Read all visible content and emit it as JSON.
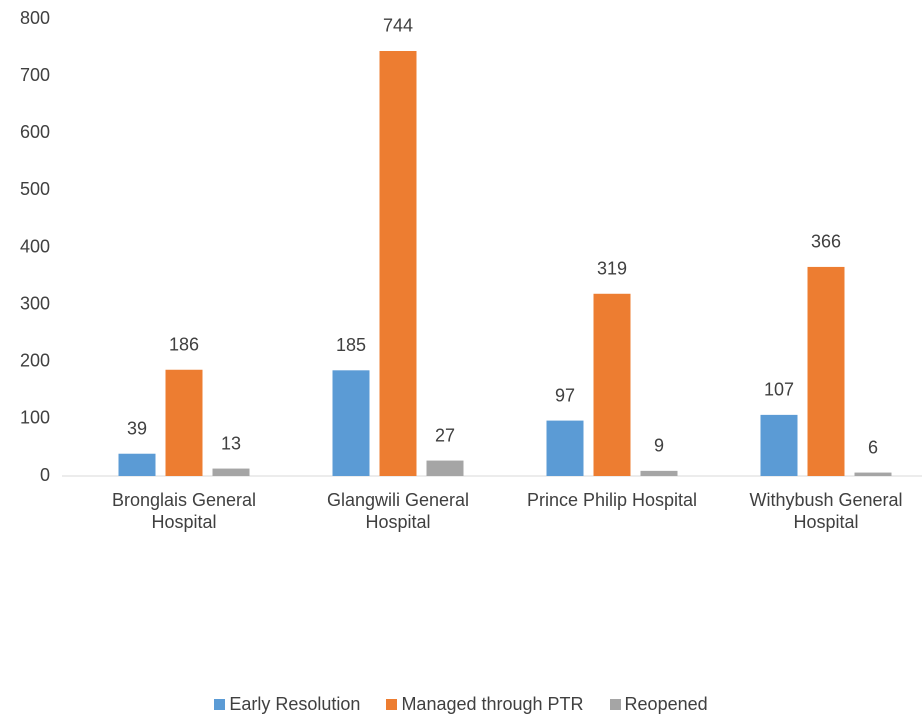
{
  "chart_data": {
    "type": "bar",
    "categories": [
      "Bronglais General Hospital",
      "Glangwili General Hospital",
      "Prince Philip Hospital",
      "Withybush General Hospital"
    ],
    "series": [
      {
        "name": "Early Resolution",
        "color": "#5b9bd5",
        "values": [
          39,
          185,
          97,
          107
        ]
      },
      {
        "name": "Managed through PTR",
        "color": "#ed7d31",
        "values": [
          186,
          744,
          319,
          366
        ]
      },
      {
        "name": "Reopened",
        "color": "#a5a5a5",
        "values": [
          13,
          27,
          9,
          6
        ]
      }
    ],
    "ylim": [
      0,
      800
    ],
    "yticks": [
      0,
      100,
      200,
      300,
      400,
      500,
      600,
      700,
      800
    ],
    "grid": false,
    "legend": "bottom"
  }
}
